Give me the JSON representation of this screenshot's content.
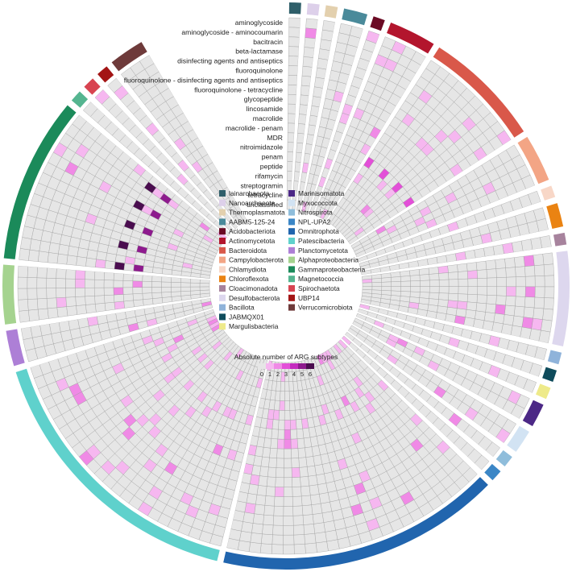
{
  "chart_data": {
    "type": "heatmap",
    "layout": "circular",
    "row_labels": [
      "aminoglycoside",
      "aminoglycoside - aminocoumarin",
      "bacitracin",
      "beta-lactamase",
      "disinfecting agents and antiseptics",
      "fluoroquinolone",
      "fluoroquinolone - disinfecting agents and antiseptics",
      "fluoroquinolone - tetracycline",
      "glycopeptide",
      "lincosamide",
      "macrolide",
      "macrolide - penam",
      "MDR",
      "nitroimidazole",
      "penam",
      "peptide",
      "rifamycin",
      "streptogramin",
      "tetracycline",
      "unclassified"
    ],
    "legend_title": "Absolute number of ARG subtypes",
    "color_scale": {
      "values": [
        0,
        1,
        2,
        3,
        4,
        5,
        6
      ],
      "colors": [
        "#e6e6e6",
        "#f6b7f0",
        "#f08ae6",
        "#e34fd8",
        "#c42bbf",
        "#8e1a8e",
        "#4a0d4f"
      ]
    },
    "taxa": [
      {
        "name": "lainarchaeota",
        "color": "#2f5f6a",
        "genomes": 1
      },
      {
        "name": "Nanoarchaeota",
        "color": "#ddd0ea",
        "genomes": 1
      },
      {
        "name": "Thermoplasmatota",
        "color": "#e3d0ae",
        "genomes": 1
      },
      {
        "name": "AABM5-125-24",
        "color": "#4a8a9a",
        "genomes": 2
      },
      {
        "name": "Acidobacteriota",
        "color": "#6b0a24",
        "genomes": 1
      },
      {
        "name": "Actinomycetota",
        "color": "#b3152d",
        "genomes": 4
      },
      {
        "name": "Bacteroidota",
        "color": "#d9584a",
        "genomes": 10
      },
      {
        "name": "Campylobacterota",
        "color": "#f3a585",
        "genomes": 4
      },
      {
        "name": "Chlamydiota",
        "color": "#f8d7c7",
        "genomes": 1
      },
      {
        "name": "Chloroflexota",
        "color": "#ea8312",
        "genomes": 2
      },
      {
        "name": "Cloacimonadota",
        "color": "#a7839d",
        "genomes": 1
      },
      {
        "name": "Desulfobacterota",
        "color": "#ddd7ee",
        "genomes": 8
      },
      {
        "name": "Bacillota",
        "color": "#8fb3da",
        "genomes": 1
      },
      {
        "name": "JABMQX01",
        "color": "#0f4c5c",
        "genomes": 1
      },
      {
        "name": "Margulisbacteria",
        "color": "#eeea8a",
        "genomes": 1
      },
      {
        "name": "Marinisomatota",
        "color": "#4c2886",
        "genomes": 2
      },
      {
        "name": "Myxococcota",
        "color": "#d2e3f3",
        "genomes": 2
      },
      {
        "name": "Nitrospirota",
        "color": "#8fbddb",
        "genomes": 1
      },
      {
        "name": "NPL-UPA2",
        "color": "#3b86c6",
        "genomes": 1
      },
      {
        "name": "Omnitrophota",
        "color": "#2165ae",
        "genomes": 24
      },
      {
        "name": "Patescibacteria",
        "color": "#5fd1cc",
        "genomes": 24
      },
      {
        "name": "Planctomycetota",
        "color": "#ad7fd6",
        "genomes": 3
      },
      {
        "name": "Alphaproteobacteria",
        "color": "#a5d38f",
        "genomes": 5
      },
      {
        "name": "Gammaproteobacteria",
        "color": "#1b8a5a",
        "genomes": 14
      },
      {
        "name": "Magnetococcia",
        "color": "#55b590",
        "genomes": 1
      },
      {
        "name": "Spirochaetota",
        "color": "#d84451",
        "genomes": 1
      },
      {
        "name": "UBP14",
        "color": "#a31515",
        "genomes": 1
      },
      {
        "name": "Verrucomicrobiota",
        "color": "#6e3a3a",
        "genomes": 3
      }
    ],
    "highlights": [
      {
        "row": "nitroimidazole",
        "taxon": "Patescibacteria",
        "value": 1
      },
      {
        "row": "nitroimidazole",
        "taxon": "Omnitrophota",
        "value": 1
      },
      {
        "row": "MDR",
        "taxon": "Bacteroidota",
        "value": 3
      },
      {
        "row": "MDR",
        "taxon": "Gammaproteobacteria",
        "value": 5
      },
      {
        "row": "macrolide",
        "taxon": "Gammaproteobacteria",
        "value": 6
      },
      {
        "row": "bacitracin",
        "taxon": "Desulfobacterota",
        "value": 2
      }
    ]
  }
}
